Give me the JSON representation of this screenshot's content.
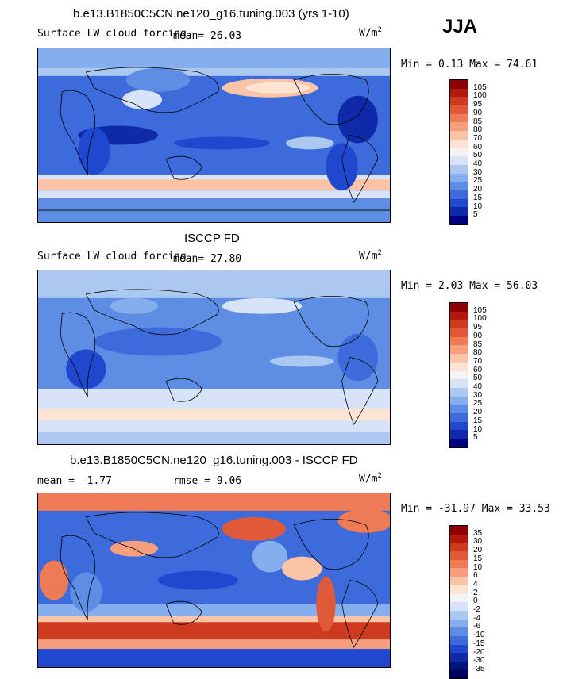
{
  "season": "JJA",
  "panels": [
    {
      "title": "b.e13.B1850C5CN.ne120_g16.tuning.003 (yrs 1-10)",
      "left_label": "Surface LW cloud forcing",
      "mean_text": "mean=   26.03",
      "units": "W/m",
      "units_exp": "2",
      "minmax": "Min =    0.13 Max =  74.61",
      "kind": "model",
      "colorbar": {
        "labels": [
          "105",
          "100",
          "95",
          "90",
          "85",
          "80",
          "70",
          "60",
          "50",
          "40",
          "30",
          "25",
          "20",
          "15",
          "10",
          "5"
        ],
        "colors": [
          "#8b0000",
          "#b2180e",
          "#cc3a20",
          "#e05a3a",
          "#ee7a56",
          "#f59f7e",
          "#fbc4a6",
          "#fde3d2",
          "#f4f4f4",
          "#d7e4f7",
          "#aac8f0",
          "#85aeee",
          "#5d8ee4",
          "#3d6bdb",
          "#1f48cf",
          "#0e2aa8",
          "#000080"
        ]
      }
    },
    {
      "title": "ISCCP FD",
      "left_label": "Surface LW cloud forcing",
      "mean_text": "mean=   27.80",
      "units": "W/m",
      "units_exp": "2",
      "minmax": "Min =    2.03 Max =  56.03",
      "kind": "obs",
      "colorbar": {
        "labels": [
          "105",
          "100",
          "95",
          "90",
          "85",
          "80",
          "70",
          "60",
          "50",
          "40",
          "30",
          "25",
          "20",
          "15",
          "10",
          "5"
        ],
        "colors": [
          "#8b0000",
          "#b2180e",
          "#cc3a20",
          "#e05a3a",
          "#ee7a56",
          "#f59f7e",
          "#fbc4a6",
          "#fde3d2",
          "#f4f4f4",
          "#d7e4f7",
          "#aac8f0",
          "#85aeee",
          "#5d8ee4",
          "#3d6bdb",
          "#1f48cf",
          "#0e2aa8",
          "#000080"
        ]
      }
    },
    {
      "title": "b.e13.B1850C5CN.ne120_g16.tuning.003 - ISCCP FD",
      "left_label": "mean =   -1.77",
      "mean_text": "rmse =    9.06",
      "units": "W/m",
      "units_exp": "2",
      "minmax": "Min = -31.97 Max =  33.53",
      "kind": "diff",
      "colorbar": {
        "labels": [
          "35",
          "30",
          "20",
          "15",
          "10",
          "6",
          "4",
          "2",
          "0",
          "-2",
          "-4",
          "-6",
          "-10",
          "-15",
          "-20",
          "-30",
          "-35"
        ],
        "colors": [
          "#8b0000",
          "#b2180e",
          "#cc3a20",
          "#e05a3a",
          "#ee7a56",
          "#f59f7e",
          "#fbc4a6",
          "#fde3d2",
          "#f4f4f4",
          "#d7e4f7",
          "#aac8f0",
          "#85aeee",
          "#5d8ee4",
          "#3d6bdb",
          "#1f48cf",
          "#0e2aa8",
          "#00157a",
          "#000060"
        ]
      }
    }
  ]
}
